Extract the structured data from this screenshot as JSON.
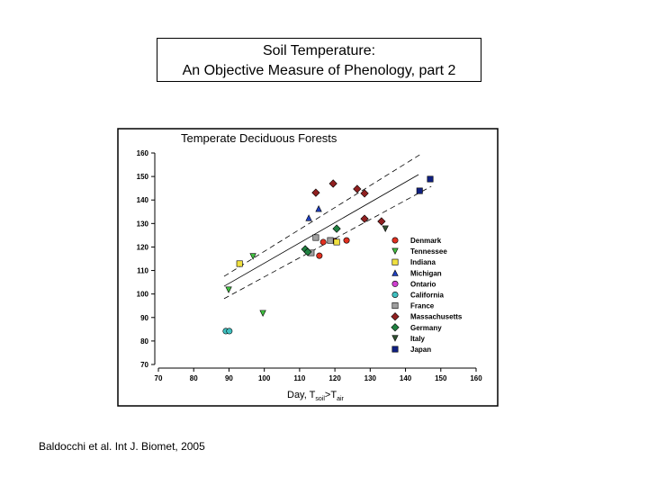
{
  "header": {
    "title": [
      "Soil Temperature:",
      "An Objective Measure of Phenology, part 2"
    ]
  },
  "chart_data": {
    "type": "scatter",
    "title": "Temperate Deciduous Forests",
    "x_label": [
      "Day, T",
      "soil",
      ">T",
      "air"
    ],
    "xlim": [
      70,
      160
    ],
    "xticks": [
      70,
      80,
      90,
      100,
      110,
      120,
      130,
      140,
      150,
      160
    ],
    "ylim": [
      70,
      160
    ],
    "yticks": [
      70,
      80,
      90,
      100,
      110,
      120,
      130,
      140,
      150,
      160
    ],
    "grid": false,
    "series": [
      {
        "name": "Denmark",
        "color": "#e03020",
        "marker": "circle",
        "x": [
          115.6,
          116.7,
          120,
          123.3
        ],
        "values": [
          116.3,
          122.1,
          122.5,
          122.8
        ]
      },
      {
        "name": "Tennessee",
        "color": "#40c040",
        "marker": "triangle-down",
        "x": [
          89.9,
          96.8,
          99.6
        ],
        "values": [
          101.8,
          116,
          91.8
        ]
      },
      {
        "name": "Indiana",
        "color": "#f0e040",
        "marker": "square",
        "x": [
          93,
          120.5
        ],
        "values": [
          112.9,
          122.1
        ]
      },
      {
        "name": "Michigan",
        "color": "#2040c0",
        "marker": "triangle",
        "x": [
          112.6,
          115.4
        ],
        "values": [
          132.4,
          136.3
        ]
      },
      {
        "name": "Ontario",
        "color": "#d040d0",
        "marker": "circle",
        "x": [],
        "values": []
      },
      {
        "name": "California",
        "color": "#40c0c0",
        "marker": "circle",
        "x": [
          89.1,
          90.1
        ],
        "values": [
          84.2,
          84.2
        ]
      },
      {
        "name": "France",
        "color": "#a0a0a0",
        "marker": "square",
        "x": [
          113.3,
          114.6,
          118.7
        ],
        "values": [
          117.5,
          124,
          122.8
        ]
      },
      {
        "name": "Massachusetts",
        "color": "#902020",
        "marker": "diamond",
        "x": [
          114.6,
          119.5,
          126.3,
          128.4,
          128.4,
          133.2
        ],
        "values": [
          143.1,
          147,
          144.7,
          142.8,
          132,
          130.9
        ]
      },
      {
        "name": "Germany",
        "color": "#208040",
        "marker": "diamond",
        "x": [
          111.6,
          112.3,
          120.5
        ],
        "values": [
          119,
          117.9,
          127.8
        ]
      },
      {
        "name": "Italy",
        "color": "#305030",
        "marker": "triangle-down",
        "x": [
          134.3
        ],
        "values": [
          127.8
        ]
      },
      {
        "name": "Japan",
        "color": "#102080",
        "marker": "square",
        "x": [
          144,
          147
        ],
        "values": [
          143.9,
          148.9
        ]
      }
    ],
    "lines": [
      {
        "style": "solid",
        "x": [
          88.6,
          143.7
        ],
        "values": [
          103.3,
          150.8
        ]
      },
      {
        "style": "dashed",
        "x": [
          88.6,
          144
        ],
        "values": [
          107.5,
          159.2
        ]
      },
      {
        "style": "dashed",
        "x": [
          88.6,
          147.3
        ],
        "values": [
          98,
          145.8
        ]
      }
    ]
  },
  "footer": "Baldocchi et al. Int J. Biomet, 2005"
}
